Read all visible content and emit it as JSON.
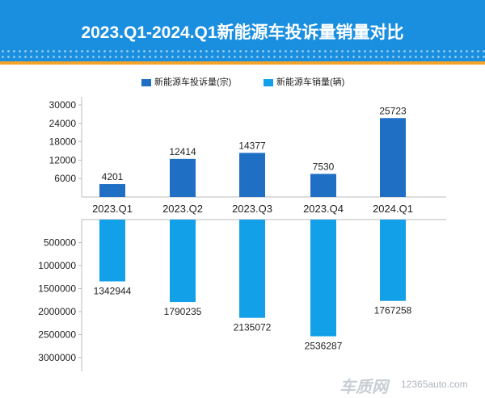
{
  "header": {
    "title": "2023.Q1-2024.Q1新能源车投诉量销量对比"
  },
  "colors": {
    "header_bg": "#1a8fe0",
    "header_stripe": "#f2a32a",
    "complaints": "#1f6fc5",
    "sales": "#12a0e8"
  },
  "watermark": {
    "logo": "车质网",
    "url": "12365auto.com"
  },
  "chart_data": {
    "type": "bar",
    "categories": [
      "2023.Q1",
      "2023.Q2",
      "2023.Q3",
      "2023.Q4",
      "2024.Q1"
    ],
    "series": [
      {
        "name": "新能源车投诉量(宗)",
        "values": [
          4201,
          12414,
          14377,
          7530,
          25723
        ],
        "data_labels": [
          "4201",
          "12414",
          "14377",
          "7530",
          "25723"
        ]
      },
      {
        "name": "新能源车销量(辆)",
        "values": [
          1342944,
          1790235,
          2135072,
          2536287,
          1767258
        ],
        "data_labels": [
          "1342944",
          "1790235",
          "2135072",
          "2536287",
          "1767258"
        ]
      }
    ],
    "upper_axis": {
      "range": [
        0,
        30000
      ],
      "ticks": [
        6000,
        12000,
        18000,
        24000,
        30000
      ]
    },
    "lower_axis": {
      "range": [
        0,
        3000000
      ],
      "ticks": [
        500000,
        1000000,
        1500000,
        2000000,
        2500000,
        3000000
      ],
      "inverted": true
    },
    "legend_position": "top-center",
    "grid": false
  }
}
